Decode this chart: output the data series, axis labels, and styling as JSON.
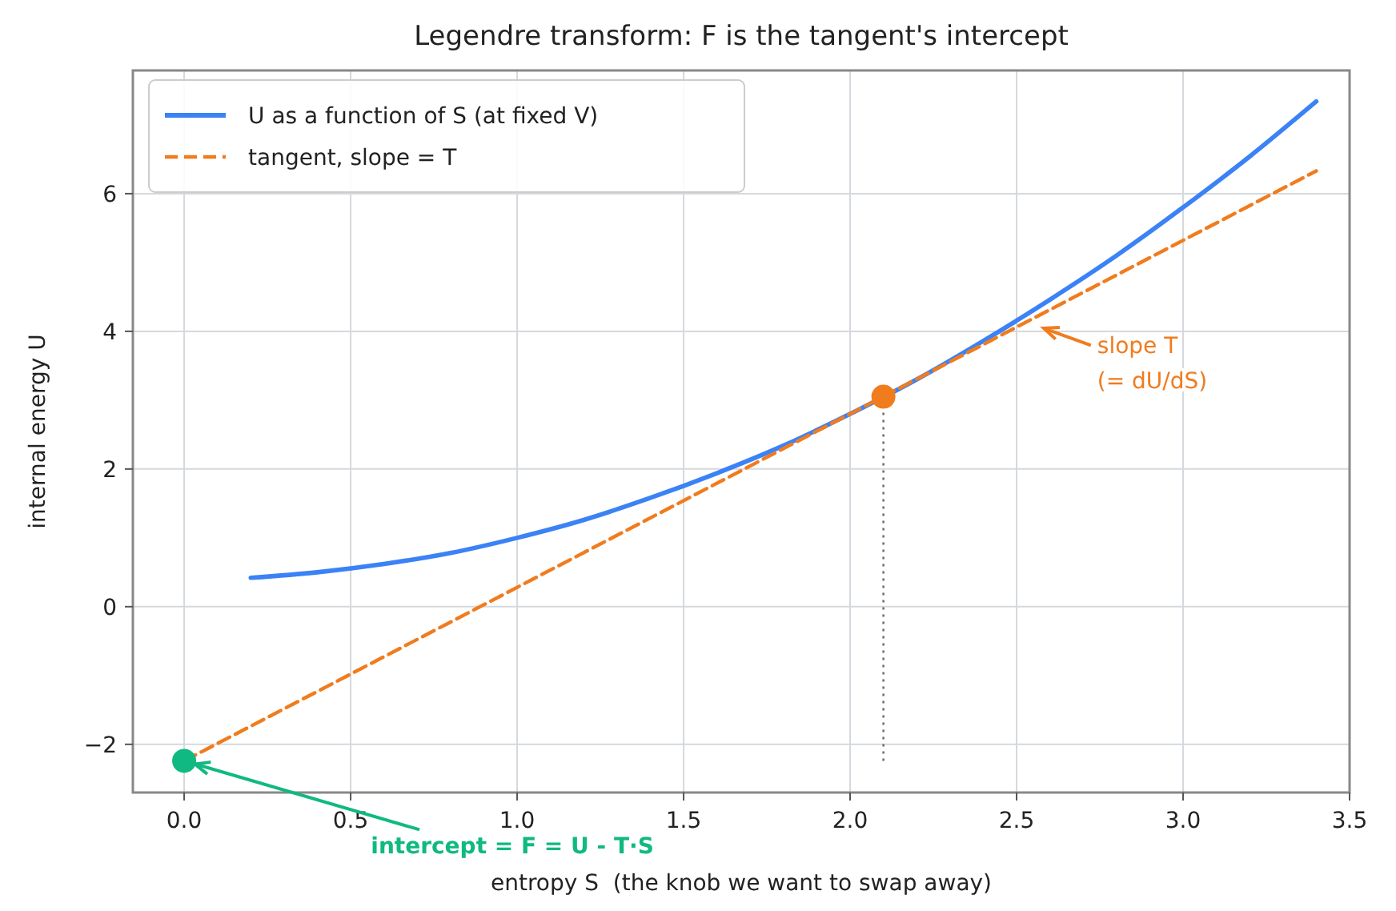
{
  "chart_data": {
    "type": "line",
    "title": "Legendre transform: F is the tangent's intercept",
    "xlabel": "entropy S  (the knob we want to swap away)",
    "ylabel": "internal energy U",
    "xlim": [
      -0.154,
      3.5
    ],
    "ylim": [
      -2.7,
      7.79
    ],
    "xticks": [
      {
        "value": 0,
        "label": "0.0"
      },
      {
        "value": 0.5,
        "label": "0.5"
      },
      {
        "value": 1,
        "label": "1.0"
      },
      {
        "value": 1.5,
        "label": "1.5"
      },
      {
        "value": 2,
        "label": "2.0"
      },
      {
        "value": 2.5,
        "label": "2.5"
      },
      {
        "value": 3,
        "label": "3.0"
      },
      {
        "value": 3.5,
        "label": "3.5"
      }
    ],
    "yticks": [
      {
        "value": -2,
        "label": "−2"
      },
      0,
      2,
      4,
      6
    ],
    "grid": true,
    "legend": "top left",
    "series": [
      {
        "name": "U as a function of S (at fixed V)",
        "color": "#3b82f6",
        "line_style": "solid",
        "x": [
          0.2,
          0.4,
          0.6,
          0.8,
          1.0,
          1.2,
          1.4,
          1.6,
          1.8,
          2.0,
          2.2,
          2.4,
          2.6,
          2.8,
          3.0,
          3.2,
          3.4
        ],
        "values": [
          0.42,
          0.5,
          0.62,
          0.78,
          1.0,
          1.26,
          1.58,
          1.94,
          2.34,
          2.8,
          3.3,
          3.86,
          4.46,
          5.1,
          5.8,
          6.54,
          7.34
        ]
      },
      {
        "name": "tangent, slope = T",
        "color": "#f07c1e",
        "line_style": "dashed",
        "x": [
          0,
          3.4
        ],
        "values": [
          -2.24,
          6.33
        ]
      },
      {
        "type": "line",
        "color": "#666666",
        "line_style": "dotted",
        "x": [
          2.1,
          2.1
        ],
        "values": [
          -2.24,
          3.05
        ]
      },
      {
        "type": "scatter",
        "color": "#f07c1e",
        "marker": "circle",
        "x": [
          2.1
        ],
        "values": [
          3.05
        ]
      },
      {
        "type": "scatter",
        "color": "#10b981",
        "marker": "circle",
        "x": [
          0
        ],
        "values": [
          -2.24
        ]
      }
    ],
    "annotations": [
      {
        "text": "slope T\n(= dU/dS)",
        "x": 2.55,
        "y": 4.1
      },
      {
        "text": "intercept = F = U - T·S",
        "x": 0,
        "y": -2.24
      }
    ]
  }
}
